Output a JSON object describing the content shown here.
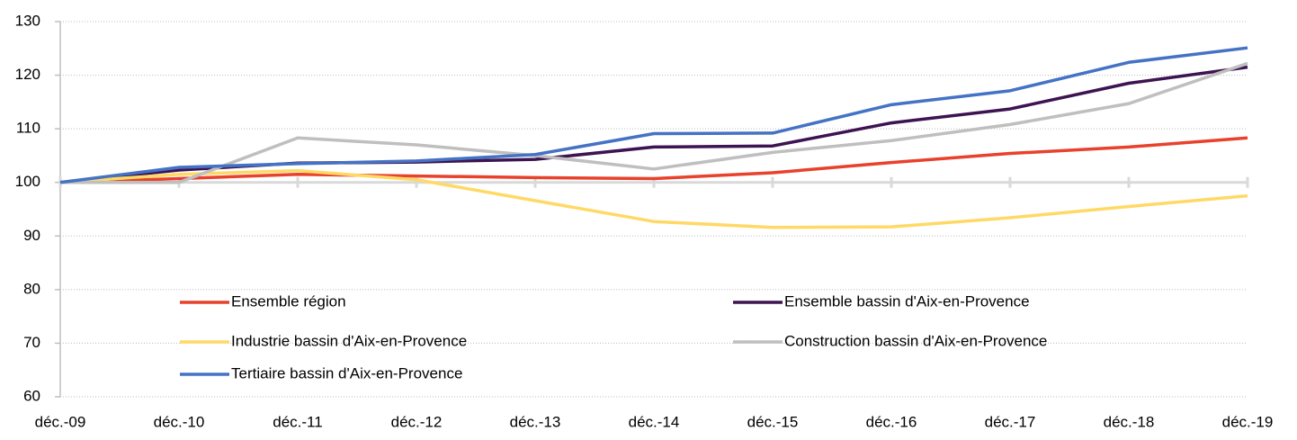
{
  "chart_data": {
    "type": "line",
    "categories": [
      "déc.-09",
      "déc.-10",
      "déc.-11",
      "déc.-12",
      "déc.-13",
      "déc.-14",
      "déc.-15",
      "déc.-16",
      "déc.-17",
      "déc.-18",
      "déc.-19"
    ],
    "series": [
      {
        "name": "Ensemble région",
        "color": "#e8412c",
        "values": [
          100,
          100.7,
          101.5,
          101.2,
          100.9,
          100.7,
          101.8,
          103.7,
          105.4,
          106.6,
          108.3
        ]
      },
      {
        "name": "Ensemble bassin d'Aix-en-Provence",
        "color": "#3d1351",
        "values": [
          100,
          102.3,
          103.6,
          103.8,
          104.3,
          106.6,
          106.8,
          111.1,
          113.7,
          118.5,
          121.5
        ]
      },
      {
        "name": "Industrie bassin d'Aix-en-Provence",
        "color": "#ffd966",
        "values": [
          100,
          101.5,
          102.2,
          100.5,
          96.6,
          92.7,
          91.6,
          91.7,
          93.4,
          95.5,
          97.5
        ]
      },
      {
        "name": "Construction bassin d'Aix-en-Provence",
        "color": "#bfbfbf",
        "values": [
          100,
          100,
          108.3,
          107,
          105,
          102.5,
          105.6,
          107.8,
          110.8,
          114.7,
          122.2
        ]
      },
      {
        "name": "Tertiaire bassin d'Aix-en-Provence",
        "color": "#4472c4",
        "values": [
          100,
          102.8,
          103.5,
          104,
          105.2,
          109.1,
          109.2,
          114.5,
          117.1,
          122.4,
          125.1
        ]
      }
    ],
    "ylim": [
      60,
      130
    ],
    "yticks": [
      60,
      70,
      80,
      90,
      100,
      110,
      120,
      130
    ],
    "x_axis_crosses": 100,
    "grid": true,
    "legend": "inside-bottom"
  }
}
